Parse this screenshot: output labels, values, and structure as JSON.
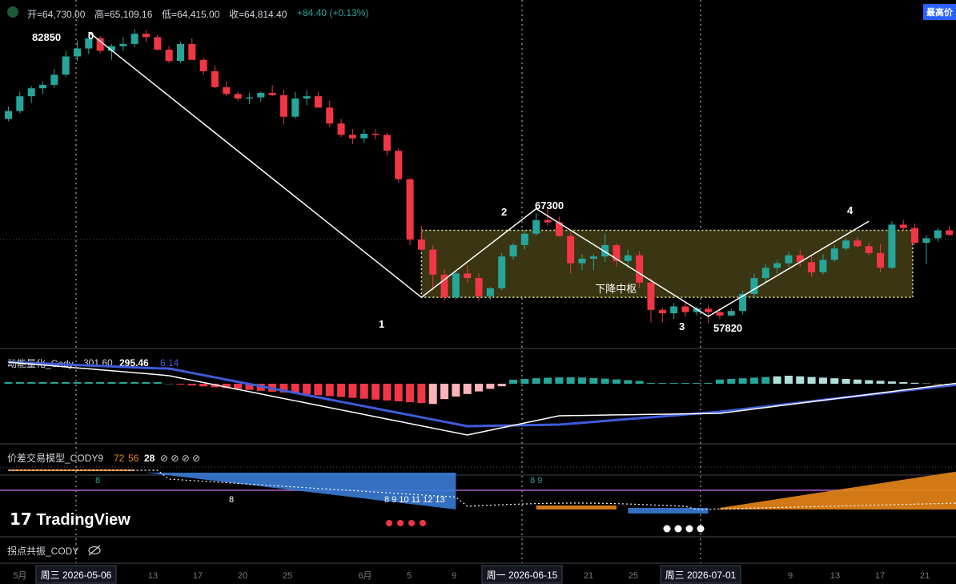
{
  "header": {
    "open_label": "开=64,730.00",
    "high_label": "高=65,109.16",
    "low_label": "低=64,415.00",
    "close_label": "收=64,814.40",
    "change_label": "+84.40 (+0.13%)",
    "badge": "最高价"
  },
  "colors": {
    "bg": "#000000",
    "up": "#26a69a",
    "down": "#f23645",
    "zone_fill": "#3a3512",
    "zone_border": "#e8e8a0",
    "macd_fast": "#ffffff",
    "macd_slow": "#3f5bd8",
    "band_blue": "#3a7bd5",
    "band_orange": "#e8861a",
    "purple_line": "#b05fd0",
    "dot_red": "#f23645",
    "dot_white": "#ffffff"
  },
  "chart_data": {
    "type": "candlestick",
    "wave_points": [
      {
        "label": "0",
        "price": "82850"
      },
      {
        "label": "1",
        "price": ""
      },
      {
        "label": "2",
        "price": "67300"
      },
      {
        "label": "3",
        "price": "57820"
      },
      {
        "label": "4",
        "price": ""
      }
    ],
    "zone_label": "下降中枢",
    "panel_macd_title": "动能量化_Cody",
    "panel_macd_values": [
      "301.60",
      "295.46",
      "6.14"
    ],
    "panel_model_title": "价差交易模型_CODY9",
    "panel_model_values": [
      "72",
      "56",
      "28",
      "⊘ ⊘ ⊘ ⊘"
    ],
    "panel_pivot_title": "拐点共振_CODY",
    "td_counts": [
      "8",
      "8",
      "8 9",
      "8 9 10 11 12 13"
    ],
    "x_axis_ticks": [
      "5月",
      "13",
      "17",
      "20",
      "25",
      "6月",
      "5",
      "9",
      "21",
      "25",
      "9",
      "13",
      "17",
      "21"
    ],
    "x_axis_highlight": [
      "周三 2026-05-06",
      "周一 2026-06-15",
      "周三 2026-07-01"
    ],
    "candles": [
      [
        75200,
        76300,
        75000,
        75900
      ],
      [
        75900,
        77600,
        75700,
        77200
      ],
      [
        77200,
        78100,
        76600,
        77900
      ],
      [
        77900,
        78500,
        77400,
        78200
      ],
      [
        78200,
        79600,
        77900,
        79100
      ],
      [
        79100,
        81200,
        78900,
        80700
      ],
      [
        80700,
        82100,
        80300,
        81400
      ],
      [
        81400,
        82850,
        80900,
        82300
      ],
      [
        82300,
        82500,
        81000,
        81200
      ],
      [
        81200,
        81800,
        80400,
        81600
      ],
      [
        81600,
        82400,
        81200,
        81800
      ],
      [
        81800,
        83100,
        81500,
        82700
      ],
      [
        82700,
        83000,
        82000,
        82400
      ],
      [
        82400,
        82600,
        81200,
        81300
      ],
      [
        81300,
        81600,
        80100,
        80300
      ],
      [
        80300,
        82000,
        80100,
        81800
      ],
      [
        81800,
        82300,
        80400,
        80400
      ],
      [
        80400,
        80600,
        79100,
        79400
      ],
      [
        79400,
        79900,
        77900,
        78000
      ],
      [
        78000,
        78500,
        77200,
        77400
      ],
      [
        77400,
        77600,
        76800,
        77000
      ],
      [
        77000,
        77500,
        76500,
        77100
      ],
      [
        77100,
        77600,
        76700,
        77500
      ],
      [
        77500,
        78200,
        77200,
        77300
      ],
      [
        77300,
        77800,
        74700,
        75400
      ],
      [
        75400,
        77600,
        75200,
        77000
      ],
      [
        77000,
        77700,
        76400,
        77200
      ],
      [
        77200,
        77600,
        76200,
        76200
      ],
      [
        76200,
        76800,
        74500,
        74800
      ],
      [
        74800,
        75200,
        73600,
        73800
      ],
      [
        73800,
        74300,
        73000,
        73500
      ],
      [
        73500,
        74300,
        73100,
        73900
      ],
      [
        73900,
        74300,
        73400,
        73800
      ],
      [
        73800,
        74000,
        72000,
        72400
      ],
      [
        72400,
        72600,
        69600,
        69900
      ],
      [
        69900,
        70000,
        64100,
        64600
      ],
      [
        64600,
        65800,
        63600,
        63700
      ],
      [
        63700,
        64100,
        60100,
        61500
      ],
      [
        61500,
        62000,
        59200,
        59500
      ],
      [
        59500,
        61900,
        59300,
        61600
      ],
      [
        61600,
        62300,
        60800,
        61200
      ],
      [
        61200,
        61600,
        59200,
        59600
      ],
      [
        59600,
        60400,
        59300,
        60300
      ],
      [
        60300,
        63400,
        60100,
        63100
      ],
      [
        63100,
        64300,
        62800,
        64100
      ],
      [
        64100,
        65400,
        63700,
        65100
      ],
      [
        65100,
        66900,
        64900,
        66300
      ],
      [
        66300,
        67300,
        65800,
        66100
      ],
      [
        66100,
        66600,
        64800,
        64900
      ],
      [
        64900,
        65200,
        61600,
        62500
      ],
      [
        62500,
        63300,
        61900,
        62900
      ],
      [
        62900,
        63300,
        61900,
        63100
      ],
      [
        63100,
        65100,
        62600,
        64100
      ],
      [
        64100,
        64300,
        62200,
        62700
      ],
      [
        62700,
        63700,
        62100,
        63200
      ],
      [
        63200,
        63600,
        60300,
        60800
      ],
      [
        60800,
        61200,
        57300,
        58400
      ],
      [
        58400,
        58600,
        57300,
        58100
      ],
      [
        58100,
        59000,
        57600,
        58700
      ],
      [
        58700,
        59000,
        57800,
        58200
      ],
      [
        58200,
        58700,
        57900,
        58500
      ],
      [
        58500,
        58800,
        57200,
        58200
      ],
      [
        58200,
        58600,
        57600,
        57900
      ],
      [
        57900,
        58500,
        57820,
        58300
      ],
      [
        58300,
        60100,
        58000,
        59800
      ],
      [
        59800,
        61600,
        59400,
        61200
      ],
      [
        61200,
        62400,
        60800,
        62100
      ],
      [
        62100,
        62800,
        61600,
        62500
      ],
      [
        62500,
        63500,
        62200,
        63200
      ],
      [
        63200,
        63700,
        62200,
        62600
      ],
      [
        62600,
        63100,
        61300,
        61700
      ],
      [
        61700,
        63300,
        61500,
        62800
      ],
      [
        62800,
        64100,
        62600,
        63800
      ],
      [
        63800,
        64700,
        63600,
        64500
      ],
      [
        64500,
        64800,
        63900,
        64000
      ],
      [
        64000,
        64300,
        63200,
        63400
      ],
      [
        63400,
        64200,
        61700,
        62100
      ],
      [
        62100,
        66200,
        62000,
        65900
      ],
      [
        65900,
        66300,
        65400,
        65600
      ],
      [
        65600,
        66000,
        64100,
        64300
      ],
      [
        64300,
        65000,
        62400,
        64700
      ],
      [
        64700,
        65600,
        64400,
        65400
      ],
      [
        65400,
        65800,
        64900,
        65000
      ],
      [
        65000,
        65600,
        64500,
        65300
      ]
    ]
  }
}
